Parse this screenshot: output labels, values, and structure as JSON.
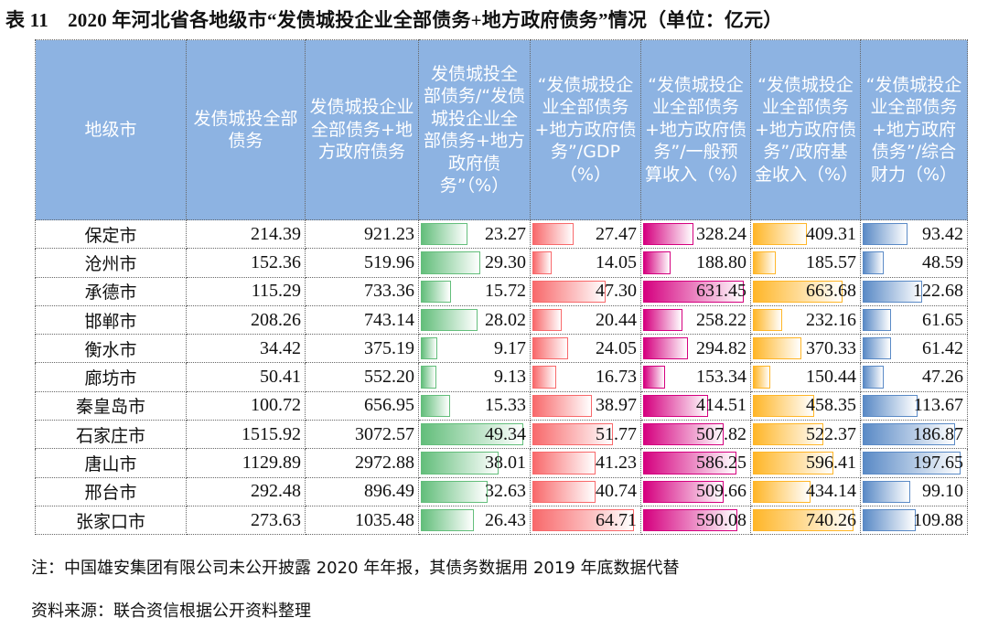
{
  "title": "表 11　2020 年河北省各地级市“发债城投企业全部债务+地方政府债务”情况（单位：亿元）",
  "headers": [
    "地级市",
    "发债城投全部债务",
    "发债城投企业全部债务+地方政府债务",
    "发债城投全部债务/“发债城投企业全部债务+地方政府债务”（%）",
    "“发债城投企业全部债务+地方政府债务”/GDP（%）",
    "“发债城投企业全部债务+地方政府债务”/一般预算收入（%）",
    "“发债城投企业全部债务+地方政府债务”/政府基金收入（%）",
    "“发债城投企业全部债务+地方政府债务”/综合财力（%）"
  ],
  "bar_colors": [
    "#63BE7B",
    "#F8696B",
    "#D5007F",
    "#FFB628",
    "#5A8AC6"
  ],
  "rows": [
    [
      "保定市",
      "214.39",
      "921.23",
      "23.27",
      "27.47",
      "328.24",
      "409.31",
      "93.42"
    ],
    [
      "沧州市",
      "152.36",
      "519.96",
      "29.30",
      "14.05",
      "188.80",
      "185.57",
      "48.59"
    ],
    [
      "承德市",
      "115.29",
      "733.36",
      "15.72",
      "47.30",
      "631.45",
      "663.68",
      "122.68"
    ],
    [
      "邯郸市",
      "208.26",
      "743.14",
      "28.02",
      "20.44",
      "258.22",
      "232.16",
      "61.65"
    ],
    [
      "衡水市",
      "34.42",
      "375.19",
      "9.17",
      "24.05",
      "294.82",
      "370.33",
      "61.42"
    ],
    [
      "廊坊市",
      "50.41",
      "552.20",
      "9.13",
      "16.73",
      "153.34",
      "150.44",
      "47.26"
    ],
    [
      "秦皇岛市",
      "100.72",
      "656.95",
      "15.33",
      "38.97",
      "414.51",
      "458.35",
      "113.67"
    ],
    [
      "石家庄市",
      "1515.92",
      "3072.57",
      "49.34",
      "51.77",
      "507.82",
      "522.37",
      "186.87"
    ],
    [
      "唐山市",
      "1129.89",
      "2972.88",
      "38.01",
      "41.23",
      "586.25",
      "596.41",
      "197.65"
    ],
    [
      "邢台市",
      "292.48",
      "896.49",
      "32.63",
      "40.74",
      "509.66",
      "434.14",
      "99.10"
    ],
    [
      "张家口市",
      "273.63",
      "1035.48",
      "26.43",
      "64.71",
      "590.08",
      "740.26",
      "109.88"
    ]
  ],
  "note": "注：中国雄安集团有限公司未公开披露 2020 年年报，其债务数据用 2019 年底数据代替",
  "source": "资料来源：联合资信根据公开资料整理"
}
